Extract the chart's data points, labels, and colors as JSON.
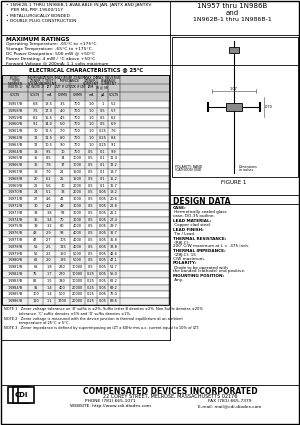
{
  "title_right": "1N957 thru 1N986B\nand\n1N962B-1 thru 1N986B-1",
  "bullets": [
    "1N962B-1 THRU 1N986B-1 AVAILABLE IN JAN, JANTX AND JANTXV",
    "PER MIL-PRF-19500/117",
    "METALLURGICALLY BONDED",
    "DOUBLE PLUG CONSTRUCTION"
  ],
  "max_ratings_title": "MAXIMUM RATINGS",
  "max_ratings": [
    "Operating Temperature: -65°C to +175°C",
    "Storage Temperature: -65°C to +175°C",
    "DC Power Dissipation: 500 mW @ +50°C",
    "Power Derating: 4 mW / °C above +50°C",
    "Forward Voltage @ 200mA: 1.1 volts maximum"
  ],
  "elec_char_title": "ELECTRICAL CHARACTERISTICS @ 25°C",
  "table_data": [
    [
      "1N957/B",
      "6.8",
      "18.5",
      "3.5",
      "700",
      "1.0",
      "10",
      "1",
      "5.2"
    ],
    [
      "1N958/B",
      "7.5",
      "17.0",
      "4.0",
      "700",
      "1.0",
      "10",
      "0.5",
      "5.7"
    ],
    [
      "1N959/B",
      "8.2",
      "15.5",
      "4.5",
      "700",
      "1.0",
      "10",
      "0.5",
      "6.2"
    ],
    [
      "1N960/B",
      "9.1",
      "14.0",
      "5.0",
      "700",
      "1.0",
      "10",
      "0.5",
      "6.9"
    ],
    [
      "1N961/B",
      "10",
      "12.5",
      "7.0",
      "700",
      "1.0",
      "10",
      "0.25",
      "7.6"
    ],
    [
      "1N962/B",
      "11",
      "11.5",
      "8.0",
      "700",
      "1.0",
      "10",
      "0.25",
      "8.4"
    ],
    [
      "1N963/B",
      "12",
      "10.5",
      "9.0",
      "700",
      "1.0",
      "10",
      "0.25",
      "9.1"
    ],
    [
      "1N964/B",
      "13",
      "9.5",
      "10",
      "700",
      "0.5",
      "25",
      "0.1",
      "9.9"
    ],
    [
      "1N965/B",
      "15",
      "8.5",
      "14",
      "1000",
      "0.5",
      "25",
      "0.1",
      "11.4"
    ],
    [
      "1N966/B",
      "16",
      "7.8",
      "17",
      "1000",
      "0.5",
      "25",
      "0.1",
      "12.2"
    ],
    [
      "1N967/B",
      "18",
      "7.0",
      "21",
      "1500",
      "0.5",
      "20",
      "0.1",
      "13.7"
    ],
    [
      "1N968/B",
      "20",
      "6.2",
      "25",
      "1500",
      "0.5",
      "20",
      "0.1",
      "15.2"
    ],
    [
      "1N969/B",
      "22",
      "5.6",
      "30",
      "2000",
      "0.5",
      "20",
      "0.1",
      "16.7"
    ],
    [
      "1N970/B",
      "24",
      "5.1",
      "33",
      "2000",
      "0.5",
      "20",
      "0.05",
      "18.2"
    ],
    [
      "1N971/B",
      "27",
      "4.6",
      "41",
      "3000",
      "0.5",
      "15",
      "0.05",
      "20.6"
    ],
    [
      "1N972/B",
      "30",
      "4.2",
      "49",
      "3000",
      "0.5",
      "15",
      "0.05",
      "22.8"
    ],
    [
      "1N973/B",
      "33",
      "3.8",
      "58",
      "3000",
      "0.5",
      "15",
      "0.05",
      "25.1"
    ],
    [
      "1N974/B",
      "36",
      "3.4",
      "70",
      "3000",
      "0.5",
      "10",
      "0.05",
      "27.4"
    ],
    [
      "1N975/B",
      "39",
      "3.2",
      "80",
      "4000",
      "0.5",
      "10",
      "0.05",
      "29.7"
    ],
    [
      "1N976/B",
      "43",
      "2.9",
      "93",
      "4000",
      "0.5",
      "10",
      "0.05",
      "32.7"
    ],
    [
      "1N977/B",
      "47",
      "2.7",
      "105",
      "4000",
      "0.5",
      "10",
      "0.05",
      "35.8"
    ],
    [
      "1N978/B",
      "51",
      "2.5",
      "125",
      "4000",
      "0.5",
      "10",
      "0.05",
      "38.8"
    ],
    [
      "1N979/B",
      "56",
      "2.2",
      "150",
      "5000",
      "0.5",
      "5",
      "0.05",
      "42.6"
    ],
    [
      "1N980/B",
      "62",
      "2.0",
      "185",
      "5000",
      "0.5",
      "5",
      "0.05",
      "47.1"
    ],
    [
      "1N981/B",
      "68",
      "1.8",
      "230",
      "10000",
      "0.5",
      "5",
      "0.05",
      "51.7"
    ],
    [
      "1N982/B",
      "75",
      "1.7",
      "270",
      "10000",
      "0.25",
      "5",
      "0.05",
      "56.0"
    ],
    [
      "1N983/B",
      "82",
      "1.5",
      "330",
      "10000",
      "0.25",
      "5",
      "0.05",
      "62.2"
    ],
    [
      "1N984/B",
      "91",
      "1.4",
      "400",
      "20000",
      "0.25",
      "5",
      "0.05",
      "69.2"
    ],
    [
      "1N985/B",
      "100",
      "1.4",
      "500",
      "20000",
      "0.25",
      "5",
      "0.05",
      "76.0"
    ],
    [
      "1N986/B",
      "110",
      "1.1",
      "1700",
      "20000",
      "0.25",
      "5",
      "0.05",
      "83.6"
    ]
  ],
  "notes": [
    "NOTE 1   Zener voltage tolerance on 'B' suffix is ±2%, Suffix letter B denotes ±2%. Non-Suffix denotes ±20%\n             tolerance. 'C' suffix denotes ±5% and 'D' suffix denotes ±1%.",
    "NOTE 2   Zener voltage is measured with the device junction in thermal equilibrium at an ambient\n             temperature of 25°C ± 5°C.",
    "NOTE 3   Zener impedance is defined by superimposing on IZT a 60Hz rms a.c. current equal to 10% of IZT."
  ],
  "design_data_title": "DESIGN DATA",
  "figure_label": "FIGURE 1",
  "case": "CASE: Hermetically sealed glass\ncase, DO-35 outline.",
  "lead_material": "LEAD MATERIAL: Copper clad steel.",
  "lead_finish": "LEAD FINISH: Tin / Lead.",
  "thermal_resistance": "THERMAL RESISTANCE: (RθJ-C):\n200  C/W maximum at L = .375 inch.",
  "thermal_impedance": "THERMAL IMPEDANCE: (ZθJ-C): 15\nC/W maximum.",
  "polarity": "POLARITY: Diode to be operated with\nthe banded (cathode) end positive.",
  "mounting": "MOUNTING POSITION: Any.",
  "company": "COMPENSATED DEVICES INCORPORATED",
  "address": "22 COREY STREET, MELROSE, MASSACHUSETTS 02176",
  "phone": "PHONE (781) 665-1071",
  "fax": "FAX (781) 665-7379",
  "website": "WEBSITE: http://www.cdi-diodes.com",
  "email": "E-mail: mail@cdi-diodes.com",
  "bg_color": "#ffffff"
}
